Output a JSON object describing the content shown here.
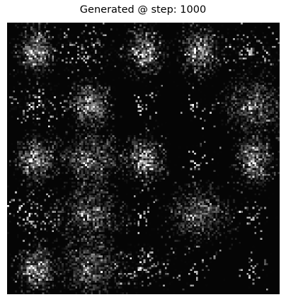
{
  "title": "Generated @ step: 1000",
  "image": {
    "description_icon": "sample-grid-image",
    "background_color": "#050505",
    "grid_rows": 5,
    "grid_cols": 5,
    "cells": [
      [
        "blob",
        "sparse-wide",
        "blob",
        "blob",
        "sparse-wide"
      ],
      [
        "sparse-wide",
        "blob",
        "faint",
        "faint",
        "dense-wide"
      ],
      [
        "blob",
        "dense-wide",
        "blob",
        "faint",
        "blob"
      ],
      [
        "sparse-wide",
        "dense-wide",
        "faint",
        "dense-wide",
        "faint"
      ],
      [
        "blob",
        "dense-wide",
        "sparse-wide",
        "faint",
        "faint"
      ]
    ]
  }
}
